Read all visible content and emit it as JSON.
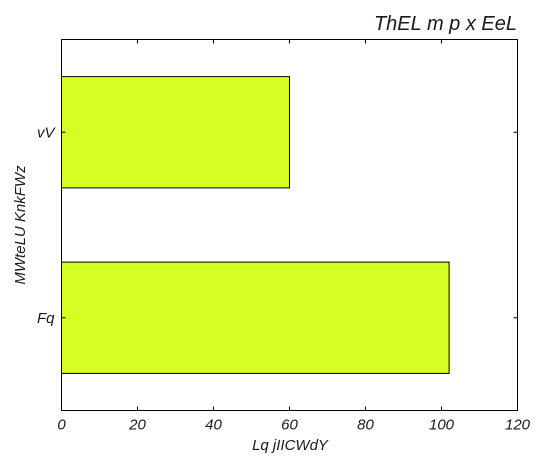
{
  "chart_data": {
    "type": "bar",
    "orientation": "horizontal",
    "title": "ThEL m p x EeL",
    "xlabel": "Lq jIICWdY",
    "ylabel": "MWteLU KnkFWz",
    "categories": [
      "vV",
      "Fq"
    ],
    "values": [
      60,
      102
    ],
    "xlim": [
      0,
      120
    ],
    "xticks": [
      0,
      20,
      40,
      60,
      80,
      100,
      120
    ],
    "grid": false,
    "legend": "none",
    "bar_color": "#d4ff20"
  }
}
